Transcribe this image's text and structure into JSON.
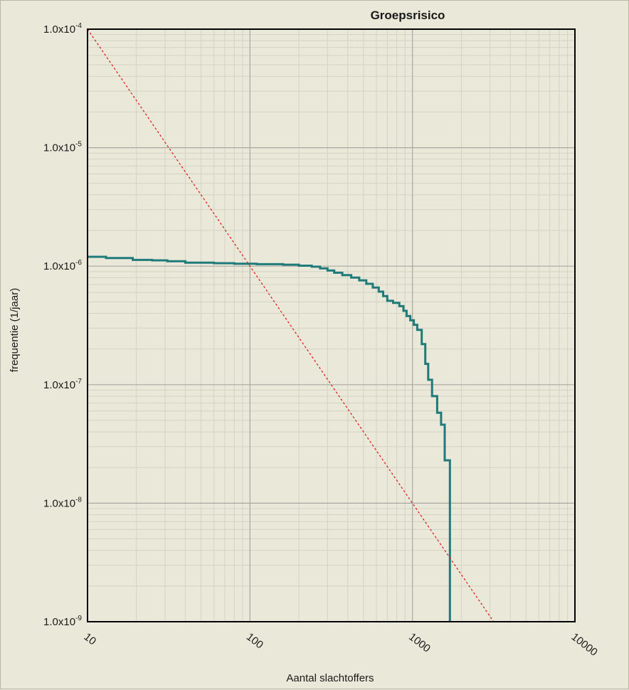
{
  "chart_data": {
    "type": "line",
    "title": "Groepsrisico",
    "xlabel": "Aantal slachtoffers",
    "ylabel": "frequentie (1/jaar)",
    "x_scale": "log",
    "y_scale": "log",
    "xlim": [
      10,
      10000
    ],
    "ylim": [
      1e-09,
      0.0001
    ],
    "grid": true,
    "x_ticks": [
      {
        "value": 10,
        "label": "10"
      },
      {
        "value": 100,
        "label": "100"
      },
      {
        "value": 1000,
        "label": "1000"
      },
      {
        "value": 10000,
        "label": "10000"
      }
    ],
    "y_ticks": [
      {
        "value": 0.0001,
        "mantissa": "1.0x10",
        "exp": "-4"
      },
      {
        "value": 1e-05,
        "mantissa": "1.0x10",
        "exp": "-5"
      },
      {
        "value": 1e-06,
        "mantissa": "1.0x10",
        "exp": "-6"
      },
      {
        "value": 1e-07,
        "mantissa": "1.0x10",
        "exp": "-7"
      },
      {
        "value": 1e-08,
        "mantissa": "1.0x10",
        "exp": "-8"
      },
      {
        "value": 1e-09,
        "mantissa": "1.0x10",
        "exp": "-9"
      }
    ],
    "series": [
      {
        "style": "step",
        "color": "#1f7a7a",
        "points": [
          [
            10,
            1.2e-06
          ],
          [
            13,
            1.17e-06
          ],
          [
            19,
            1.13e-06
          ],
          [
            25,
            1.12e-06
          ],
          [
            31,
            1.1e-06
          ],
          [
            40,
            1.07e-06
          ],
          [
            60,
            1.06e-06
          ],
          [
            80,
            1.05e-06
          ],
          [
            110,
            1.04e-06
          ],
          [
            160,
            1.03e-06
          ],
          [
            200,
            1.01e-06
          ],
          [
            240,
            9.9e-07
          ],
          [
            270,
            9.6e-07
          ],
          [
            300,
            9.2e-07
          ],
          [
            330,
            8.8e-07
          ],
          [
            370,
            8.4e-07
          ],
          [
            420,
            8e-07
          ],
          [
            470,
            7.6e-07
          ],
          [
            520,
            7.1e-07
          ],
          [
            570,
            6.6e-07
          ],
          [
            620,
            6.1e-07
          ],
          [
            660,
            5.6e-07
          ],
          [
            700,
            5.1e-07
          ],
          [
            760,
            4.9e-07
          ],
          [
            830,
            4.6e-07
          ],
          [
            880,
            4.2e-07
          ],
          [
            920,
            3.8e-07
          ],
          [
            970,
            3.5e-07
          ],
          [
            1020,
            3.2e-07
          ],
          [
            1070,
            2.9e-07
          ],
          [
            1140,
            2.2e-07
          ],
          [
            1200,
            1.5e-07
          ],
          [
            1250,
            1.1e-07
          ],
          [
            1320,
            8e-08
          ],
          [
            1420,
            5.8e-08
          ],
          [
            1500,
            4.6e-08
          ],
          [
            1580,
            2.3e-08
          ],
          [
            1700,
            2.3e-08
          ],
          [
            1700,
            1e-09
          ]
        ]
      },
      {
        "style": "dashed",
        "color": "#e0231f",
        "points": [
          [
            10,
            0.0001
          ],
          [
            3160,
            1e-09
          ]
        ]
      }
    ]
  }
}
